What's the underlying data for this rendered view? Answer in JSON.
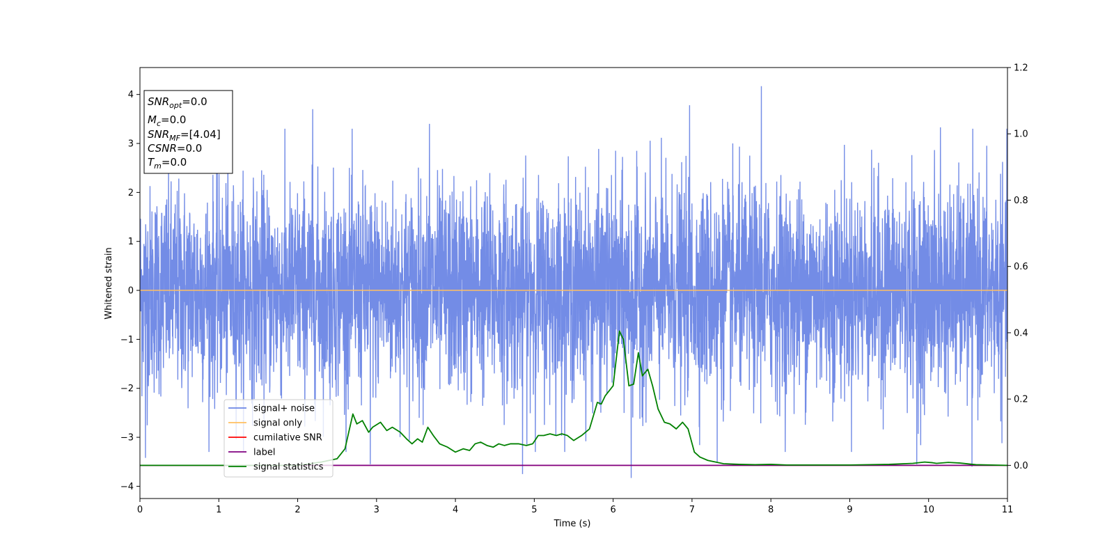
{
  "chart_data": {
    "type": "line",
    "title": "",
    "xlabel": "Time (s)",
    "ylabel": "Whitened strain",
    "y2label": "",
    "xlim": [
      0,
      11
    ],
    "ylim": [
      -4.25,
      4.55
    ],
    "y2lim": [
      -0.1,
      1.2
    ],
    "xticks": [
      0,
      1,
      2,
      3,
      4,
      5,
      6,
      7,
      8,
      9,
      10,
      11
    ],
    "yticks": [
      -4,
      -3,
      -2,
      -1,
      0,
      1,
      2,
      3,
      4
    ],
    "y2ticks": [
      0.0,
      0.2,
      0.4,
      0.6,
      0.8,
      1.0,
      1.2
    ],
    "y2tick_labels": [
      "0.0",
      "0.2",
      "0.4",
      "0.6",
      "0.8",
      "1.0",
      "1.2"
    ],
    "grid": false,
    "legend_position": "lower-left",
    "legend": [
      {
        "name": "signal+ noise",
        "color": "#6b86e5"
      },
      {
        "name": "signal only",
        "color": "#ffbf60"
      },
      {
        "name": "cumilative SNR",
        "color": "#ff0000"
      },
      {
        "name": "label",
        "color": "#800080"
      },
      {
        "name": "signal statistics",
        "color": "#008000"
      }
    ],
    "annotation": {
      "lines": [
        {
          "name": "SNR",
          "sub": "opt",
          "value": "=0.0"
        },
        {
          "name": "M",
          "sub": "c",
          "value": "=0.0"
        },
        {
          "name": "SNR",
          "sub": "MF",
          "value": "=[4.04]"
        },
        {
          "name": "CSNR",
          "sub": "",
          "value": "=0.0"
        },
        {
          "name": "T",
          "sub": "m",
          "value": "=0.0"
        }
      ]
    },
    "series": [
      {
        "name": "signal+ noise",
        "axis": "left",
        "color": "#6b86e5",
        "description_stats": {
          "mean": 0.0,
          "std": 1.0,
          "max": 4.17,
          "min": -3.83
        },
        "peaks": [
          {
            "x": 0.07,
            "y": -3.42
          },
          {
            "x": 2.19,
            "y": 3.7
          },
          {
            "x": 2.92,
            "y": -3.55
          },
          {
            "x": 3.67,
            "y": 3.4
          },
          {
            "x": 4.85,
            "y": -3.75
          },
          {
            "x": 6.23,
            "y": -3.83
          },
          {
            "x": 6.97,
            "y": 3.78
          },
          {
            "x": 7.88,
            "y": 4.17
          },
          {
            "x": 7.32,
            "y": -3.5
          },
          {
            "x": 9.85,
            "y": -3.55
          },
          {
            "x": 10.55,
            "y": -3.6
          },
          {
            "x": 10.15,
            "y": 3.33
          }
        ]
      },
      {
        "name": "signal only",
        "axis": "left",
        "color": "#ffbf60",
        "x": [
          0,
          11
        ],
        "y": [
          0,
          0
        ]
      },
      {
        "name": "cumilative SNR",
        "axis": "right",
        "color": "#ff0000",
        "x": [
          0,
          11
        ],
        "y": [
          0,
          0
        ]
      },
      {
        "name": "label",
        "axis": "right",
        "color": "#800080",
        "x": [
          0,
          11
        ],
        "y": [
          0,
          0
        ]
      },
      {
        "name": "signal statistics",
        "axis": "right",
        "color": "#008000",
        "x": [
          0,
          0.5,
          1.0,
          1.5,
          2.0,
          2.3,
          2.5,
          2.6,
          2.7,
          2.75,
          2.82,
          2.9,
          2.95,
          3.05,
          3.13,
          3.2,
          3.3,
          3.38,
          3.45,
          3.52,
          3.58,
          3.65,
          3.72,
          3.8,
          3.9,
          4.0,
          4.1,
          4.18,
          4.25,
          4.32,
          4.4,
          4.48,
          4.55,
          4.62,
          4.7,
          4.8,
          4.9,
          4.98,
          5.05,
          5.12,
          5.2,
          5.28,
          5.35,
          5.42,
          5.5,
          5.6,
          5.7,
          5.75,
          5.8,
          5.85,
          5.9,
          6.0,
          6.08,
          6.13,
          6.2,
          6.26,
          6.32,
          6.37,
          6.44,
          6.5,
          6.57,
          6.65,
          6.72,
          6.8,
          6.88,
          6.95,
          7.03,
          7.1,
          7.2,
          7.3,
          7.4,
          7.6,
          7.8,
          8.0,
          8.2,
          8.5,
          9.0,
          9.5,
          9.8,
          9.95,
          10.05,
          10.1,
          10.25,
          10.4,
          10.6,
          11.0
        ],
        "y": [
          0.0,
          0.0,
          0.0,
          0.0,
          0.0,
          0.01,
          0.02,
          0.05,
          0.155,
          0.125,
          0.135,
          0.1,
          0.115,
          0.13,
          0.105,
          0.115,
          0.1,
          0.08,
          0.065,
          0.08,
          0.07,
          0.115,
          0.09,
          0.065,
          0.055,
          0.04,
          0.05,
          0.045,
          0.065,
          0.07,
          0.06,
          0.055,
          0.065,
          0.06,
          0.065,
          0.065,
          0.06,
          0.065,
          0.09,
          0.09,
          0.095,
          0.09,
          0.095,
          0.09,
          0.075,
          0.09,
          0.11,
          0.15,
          0.19,
          0.185,
          0.21,
          0.24,
          0.405,
          0.38,
          0.24,
          0.245,
          0.34,
          0.27,
          0.29,
          0.24,
          0.17,
          0.13,
          0.125,
          0.11,
          0.13,
          0.11,
          0.04,
          0.025,
          0.015,
          0.01,
          0.005,
          0.003,
          0.002,
          0.003,
          0.001,
          0.001,
          0.001,
          0.003,
          0.006,
          0.01,
          0.008,
          0.006,
          0.009,
          0.007,
          0.002,
          0.0
        ]
      }
    ]
  }
}
